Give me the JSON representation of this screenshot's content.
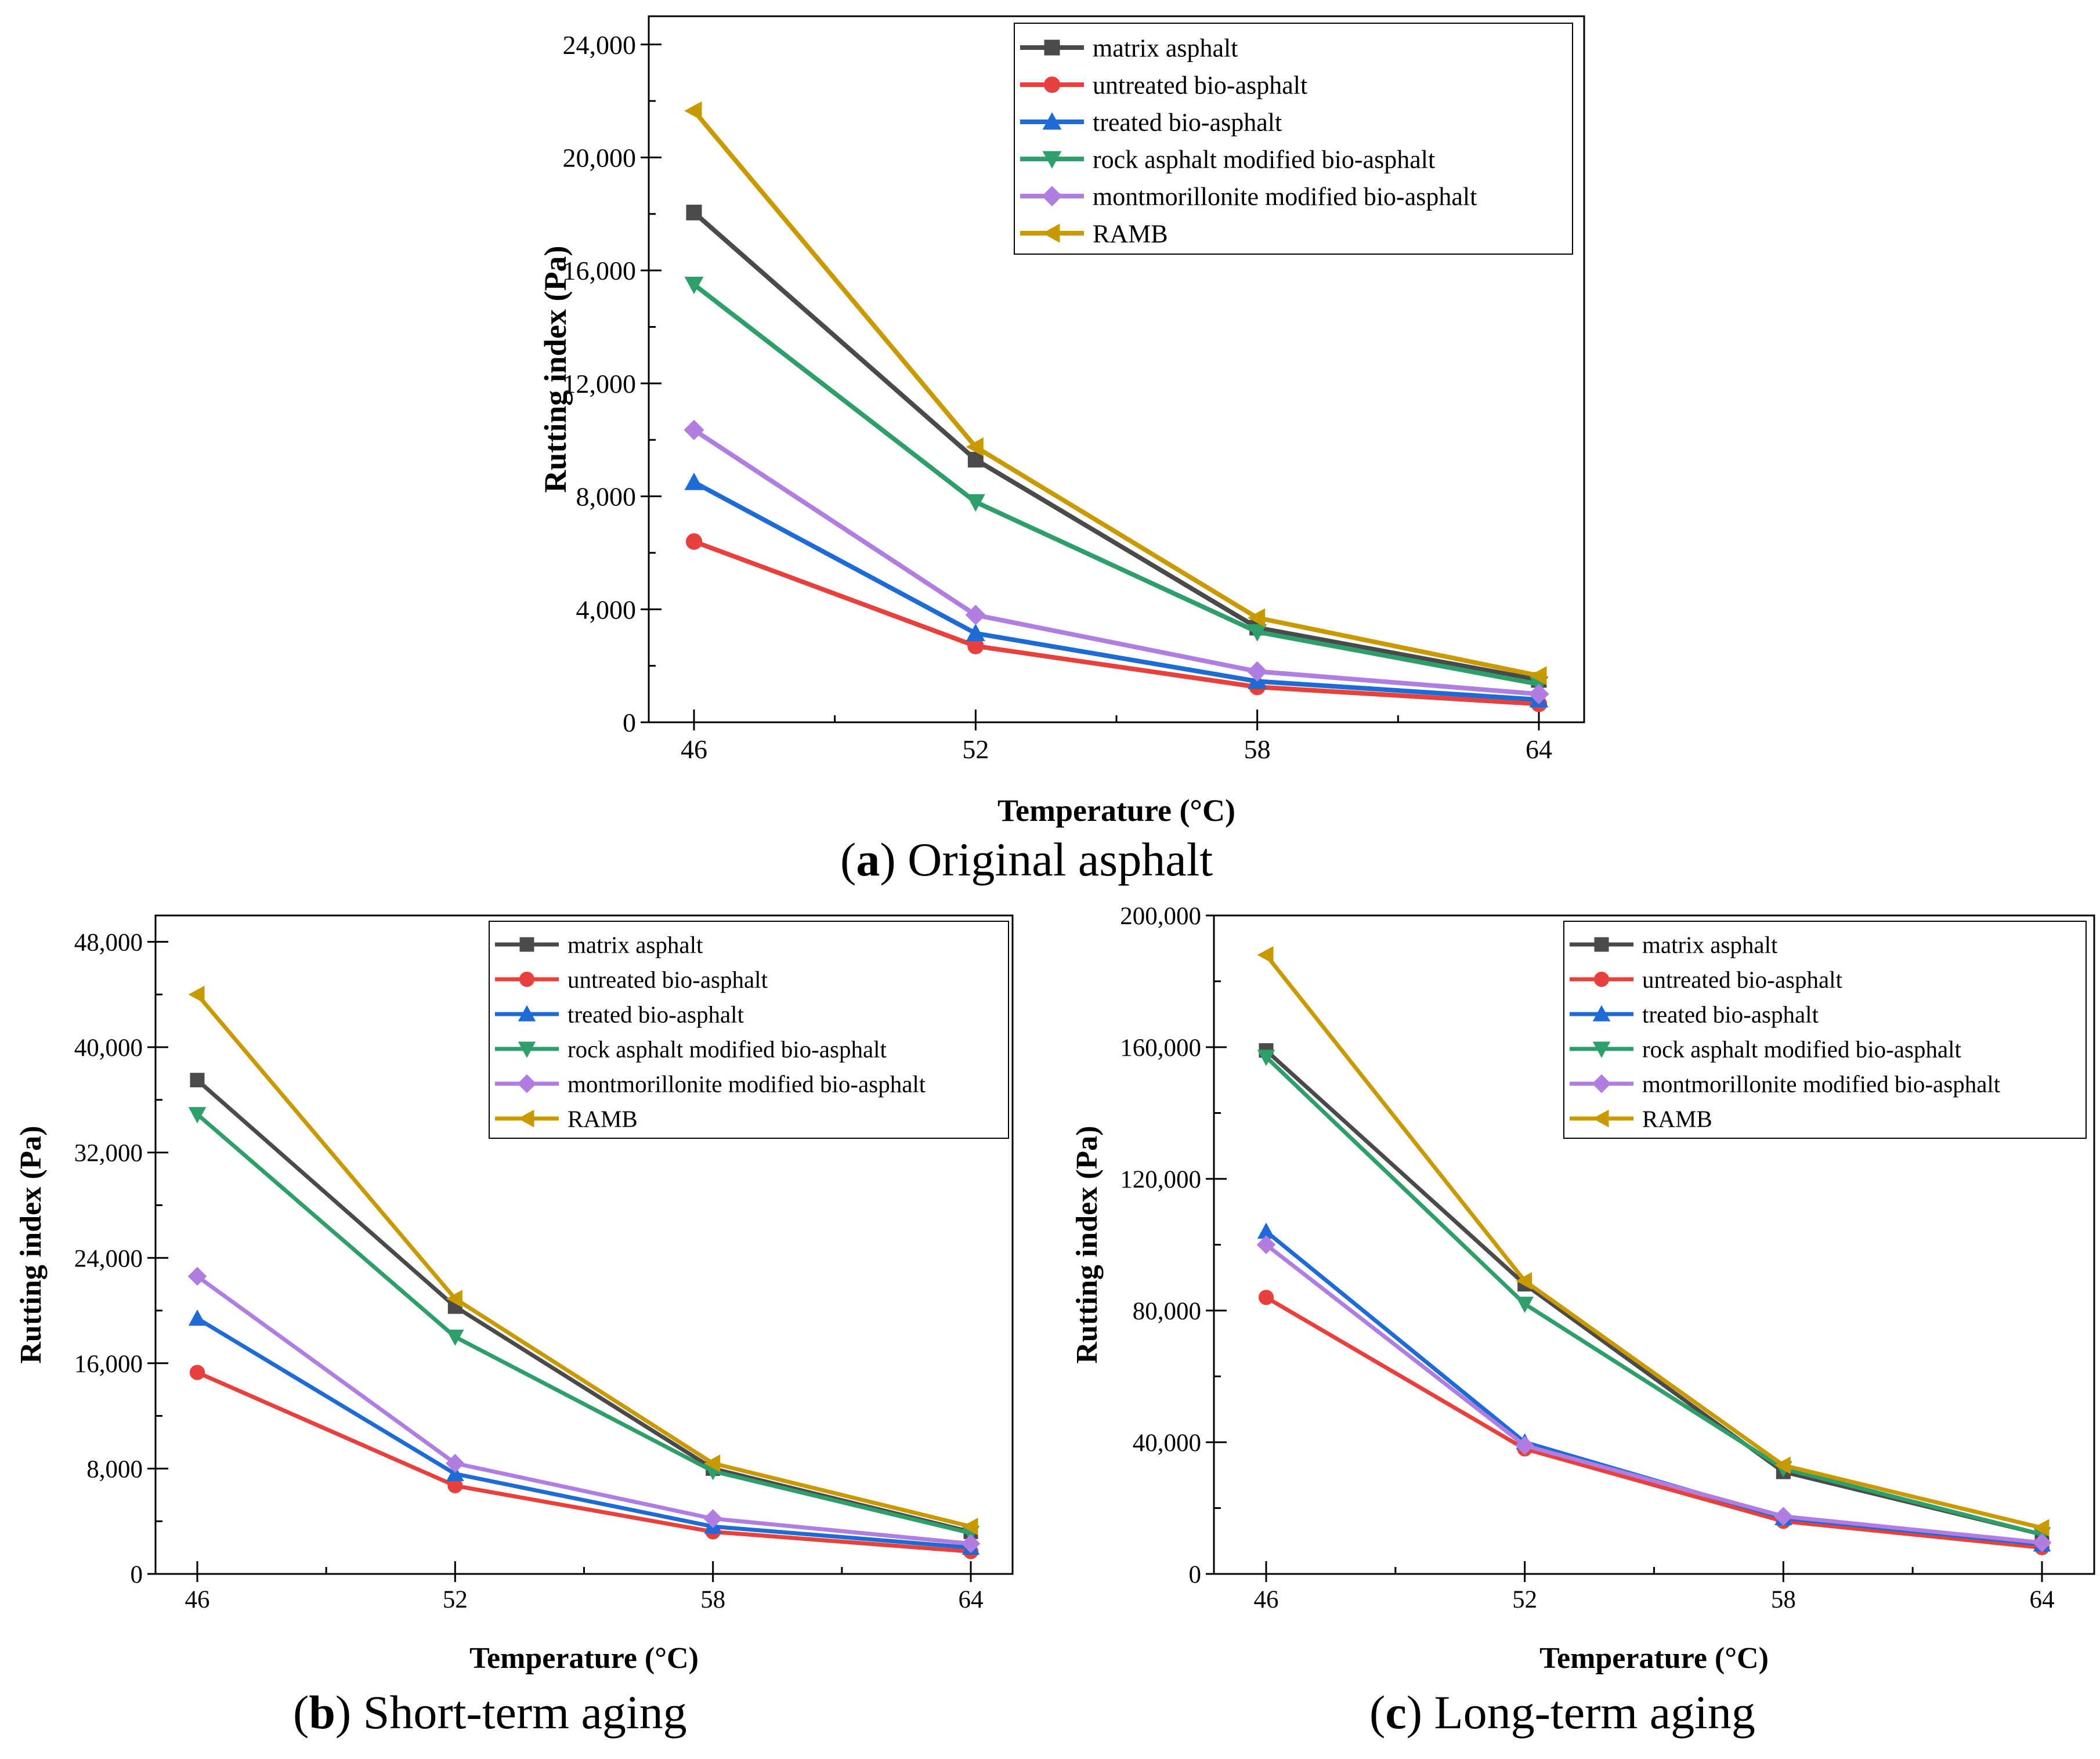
{
  "series_styles": [
    {
      "name": "matrix asphalt",
      "color": "#4a4a4a",
      "marker": "square"
    },
    {
      "name": "untreated bio-asphalt",
      "color": "#e8403c",
      "marker": "circle"
    },
    {
      "name": "treated bio-asphalt",
      "color": "#1f6bd6",
      "marker": "triangle-up"
    },
    {
      "name": "rock asphalt modified bio-asphalt",
      "color": "#2e9e6b",
      "marker": "triangle-down"
    },
    {
      "name": "montmorillonite modified bio-asphalt",
      "color": "#b07ee0",
      "marker": "diamond"
    },
    {
      "name": "RAMB",
      "color": "#c89a00",
      "marker": "triangle-left"
    }
  ],
  "chart_data": [
    {
      "id": "a",
      "type": "line",
      "caption_letter": "a",
      "caption_text": "Original asphalt",
      "xlabel": "Temperature (°C)",
      "ylabel": "Rutting index (Pa)",
      "categories": [
        "46",
        "52",
        "58",
        "64"
      ],
      "ylim": [
        0,
        25000
      ],
      "yticks": [
        "0",
        "4,000",
        "8,000",
        "12,000",
        "16,000",
        "20,000",
        "24,000"
      ],
      "ytick_values": [
        0,
        4000,
        8000,
        12000,
        16000,
        20000,
        24000
      ],
      "legend_position": "top-right",
      "series": [
        {
          "name": "matrix asphalt",
          "values": [
            18050,
            9300,
            3350,
            1500
          ]
        },
        {
          "name": "untreated bio-asphalt",
          "values": [
            6400,
            2700,
            1250,
            650
          ]
        },
        {
          "name": "treated bio-asphalt",
          "values": [
            8500,
            3150,
            1450,
            800
          ]
        },
        {
          "name": "rock asphalt modified bio-asphalt",
          "values": [
            15500,
            7800,
            3200,
            1350
          ]
        },
        {
          "name": "montmorillonite modified bio-asphalt",
          "values": [
            10350,
            3800,
            1800,
            1000
          ]
        },
        {
          "name": "RAMB",
          "values": [
            21650,
            9750,
            3700,
            1650
          ]
        }
      ]
    },
    {
      "id": "b",
      "type": "line",
      "caption_letter": "b",
      "caption_text": "Short-term aging",
      "xlabel": "Temperature (°C)",
      "ylabel": "Rutting index (Pa)",
      "categories": [
        "46",
        "52",
        "58",
        "64"
      ],
      "ylim": [
        0,
        50000
      ],
      "yticks": [
        "0",
        "8,000",
        "16,000",
        "24,000",
        "32,000",
        "40,000",
        "48,000"
      ],
      "ytick_values": [
        0,
        8000,
        16000,
        24000,
        32000,
        40000,
        48000
      ],
      "legend_position": "top-right",
      "series": [
        {
          "name": "matrix asphalt",
          "values": [
            37500,
            20300,
            8000,
            3200
          ]
        },
        {
          "name": "untreated bio-asphalt",
          "values": [
            15300,
            6700,
            3200,
            1700
          ]
        },
        {
          "name": "treated bio-asphalt",
          "values": [
            19400,
            7600,
            3600,
            2000
          ]
        },
        {
          "name": "rock asphalt modified bio-asphalt",
          "values": [
            34900,
            18000,
            7800,
            3100
          ]
        },
        {
          "name": "montmorillonite modified bio-asphalt",
          "values": [
            22600,
            8400,
            4200,
            2300
          ]
        },
        {
          "name": "RAMB",
          "values": [
            44000,
            20900,
            8400,
            3600
          ]
        }
      ]
    },
    {
      "id": "c",
      "type": "line",
      "caption_letter": "c",
      "caption_text": "Long-term aging",
      "xlabel": "Temperature (°C)",
      "ylabel": "Rutting index (Pa)",
      "categories": [
        "46",
        "52",
        "58",
        "64"
      ],
      "ylim": [
        0,
        200000
      ],
      "yticks": [
        "0",
        "40,000",
        "80,000",
        "120,000",
        "160,000",
        "200,000"
      ],
      "ytick_values": [
        0,
        40000,
        80000,
        120000,
        160000,
        200000
      ],
      "legend_position": "top-right",
      "series": [
        {
          "name": "matrix asphalt",
          "values": [
            159000,
            88000,
            31000,
            12000
          ]
        },
        {
          "name": "untreated bio-asphalt",
          "values": [
            84000,
            38000,
            16000,
            8000
          ]
        },
        {
          "name": "treated bio-asphalt",
          "values": [
            104000,
            40000,
            17000,
            9000
          ]
        },
        {
          "name": "rock asphalt modified bio-asphalt",
          "values": [
            157000,
            82000,
            32000,
            12000
          ]
        },
        {
          "name": "montmorillonite modified bio-asphalt",
          "values": [
            100000,
            39000,
            17500,
            9500
          ]
        },
        {
          "name": "RAMB",
          "values": [
            188000,
            89000,
            33000,
            14000
          ]
        }
      ]
    }
  ]
}
